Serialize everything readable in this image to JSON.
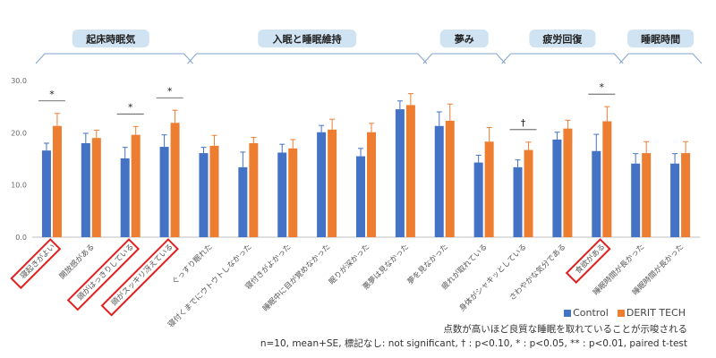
{
  "chart_data": {
    "type": "bar",
    "ylim": [
      0,
      30
    ],
    "yticks": [
      "0.0",
      "10.0",
      "20.0",
      "30.0"
    ],
    "group_headers": [
      {
        "label": "起床時眠気",
        "from": 0,
        "to": 3
      },
      {
        "label": "入眠と睡眠維持",
        "from": 4,
        "to": 9
      },
      {
        "label": "夢み",
        "from": 10,
        "to": 11
      },
      {
        "label": "疲労回復",
        "from": 12,
        "to": 14
      },
      {
        "label": "睡眠時間",
        "from": 15,
        "to": 16
      }
    ],
    "categories": [
      "寝起きがよい",
      "開放感がある",
      "頭がはっきりしている",
      "頭がスッキリ冴えている",
      "ぐっすり眠れた",
      "寝付くまでにウトウトしなかった",
      "寝付きがよかった",
      "睡眠中に目が覚めなかった",
      "眠りが深かった",
      "悪夢は見なかった",
      "夢を見なかった",
      "疲れが取れている",
      "身体がシャキッとしている",
      "さわやかな気分である",
      "食欲がある",
      "睡眠時間が長かった",
      "睡眠時間が長かった"
    ],
    "highlighted": [
      0,
      2,
      3,
      14
    ],
    "series": [
      {
        "name": "Control",
        "color": "#4472C4",
        "values": [
          16.6,
          18.0,
          15.1,
          17.3,
          16.1,
          13.4,
          16.2,
          20.1,
          15.5,
          24.5,
          21.3,
          14.3,
          13.4,
          18.7,
          16.5,
          14.1,
          14.1
        ],
        "errors": [
          1.4,
          1.9,
          2.1,
          2.3,
          1.1,
          2.9,
          1.6,
          1.3,
          1.5,
          1.6,
          2.7,
          1.4,
          1.4,
          1.4,
          3.2,
          1.9,
          1.9
        ]
      },
      {
        "name": "DERIT TECH",
        "color": "#ED7D31",
        "values": [
          21.3,
          19.0,
          19.6,
          21.9,
          17.5,
          18.0,
          17.0,
          20.6,
          20.1,
          25.3,
          22.3,
          18.3,
          16.7,
          20.8,
          22.2,
          16.1,
          16.1
        ],
        "errors": [
          2.4,
          1.5,
          1.6,
          2.4,
          2.0,
          1.1,
          1.7,
          2.0,
          1.7,
          2.2,
          3.2,
          2.7,
          1.5,
          1.6,
          2.8,
          2.2,
          2.2
        ]
      }
    ],
    "significance": [
      {
        "index": 0,
        "mark": "*"
      },
      {
        "index": 2,
        "mark": "*"
      },
      {
        "index": 3,
        "mark": "*"
      },
      {
        "index": 12,
        "mark": "†"
      },
      {
        "index": 14,
        "mark": "*"
      }
    ],
    "legend_position": "bottom-right",
    "note_interpretation": "点数が高いほど良質な睡眠を取れていることが示唆される",
    "note_stats": "n=10, mean+SE, 標記なし: not significant, † : p<0.10, * : p<0.05, ** : p<0.01, paired t-test"
  }
}
